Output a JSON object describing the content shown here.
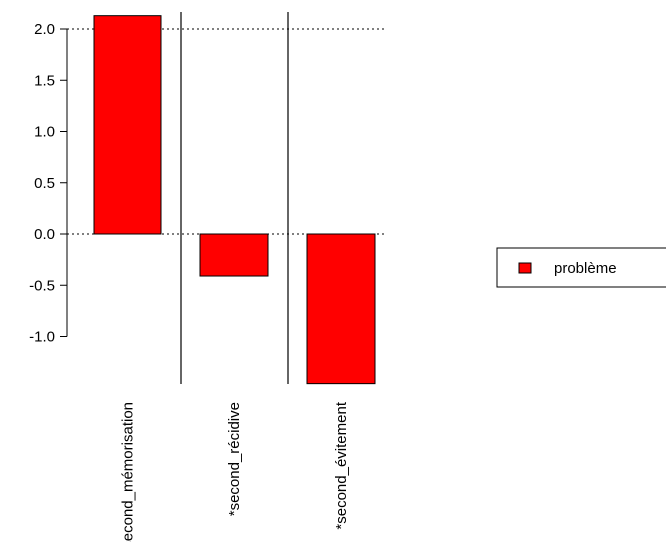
{
  "chart_data": {
    "type": "bar",
    "categories": [
      "*second_mémorisation",
      "*second_récidive",
      "*second_évitement"
    ],
    "series": [
      {
        "name": "problème",
        "values": [
          2.13,
          -0.41,
          -1.46
        ]
      }
    ],
    "ylim": [
      -1.46,
      2.13
    ],
    "yticks": [
      "2.0",
      "1.5",
      "1.0",
      "0.5",
      "0.0",
      "-0.5",
      "-1.0"
    ],
    "reference_lines": [
      2.0,
      0.0
    ],
    "bar_color": "#ff0000",
    "legend_position": "right"
  }
}
